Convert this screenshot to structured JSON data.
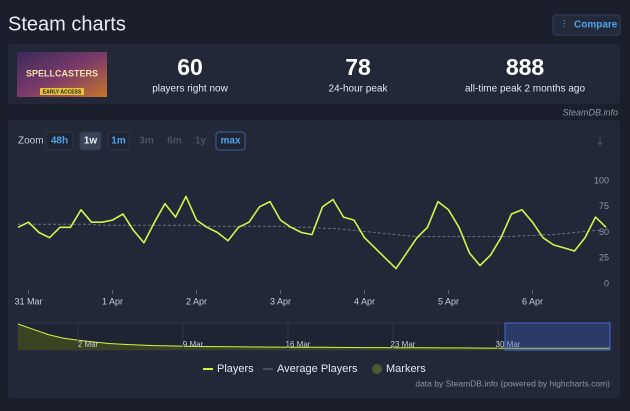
{
  "header": {
    "title": "Steam charts",
    "button": "Compare"
  },
  "game_image": {
    "title": "SPELLCASTERS",
    "badge": "EARLY ACCESS"
  },
  "stats": [
    {
      "value": "60",
      "label": "players right now"
    },
    {
      "value": "78",
      "label": "24-hour peak"
    },
    {
      "value": "888",
      "label": "all-time peak 2 months ago"
    }
  ],
  "source": "SteamDB.info",
  "zoom": {
    "label": "Zoom",
    "buttons": [
      "48h",
      "1w",
      "1m",
      "3m",
      "6m",
      "1y",
      "max"
    ],
    "active": "1w",
    "disabled": [
      "3m",
      "6m",
      "1y"
    ]
  },
  "chart_data": {
    "type": "line",
    "categories": [
      null,
      "31 Mar",
      null,
      null,
      null,
      null,
      null,
      null,
      null,
      "1 Apr",
      null,
      null,
      null,
      null,
      null,
      null,
      null,
      "2 Apr",
      null,
      null,
      null,
      null,
      null,
      null,
      null,
      "3 Apr",
      null,
      null,
      null,
      null,
      null,
      null,
      null,
      "4 Apr",
      null,
      null,
      null,
      null,
      null,
      null,
      null,
      "5 Apr",
      null,
      null,
      null,
      null,
      null,
      null,
      null,
      "6 Apr",
      null,
      null,
      null,
      null,
      null,
      null,
      null
    ],
    "series": [
      {
        "name": "Players",
        "color": "#d2f54a",
        "values": [
          55,
          60,
          50,
          45,
          55,
          55,
          72,
          60,
          60,
          62,
          68,
          52,
          40,
          60,
          78,
          65,
          85,
          62,
          55,
          50,
          42,
          55,
          60,
          75,
          80,
          62,
          55,
          50,
          48,
          75,
          82,
          65,
          62,
          45,
          35,
          25,
          15,
          30,
          45,
          55,
          80,
          72,
          55,
          30,
          18,
          28,
          45,
          68,
          72,
          60,
          45,
          38,
          35,
          32,
          45,
          65,
          55
        ]
      },
      {
        "name": "Average Players",
        "color": "#6b7080",
        "values": [
          58,
          58,
          58,
          58,
          58,
          58,
          58,
          58,
          57,
          57,
          57,
          57,
          57,
          57,
          57,
          57,
          57,
          57,
          56,
          56,
          56,
          56,
          56,
          56,
          56,
          56,
          55,
          55,
          55,
          54,
          54,
          53,
          52,
          51,
          50,
          49,
          48,
          47,
          46,
          46,
          46,
          46,
          46,
          46,
          46,
          46,
          46,
          46,
          47,
          47,
          48,
          48,
          49,
          50,
          51,
          52,
          52
        ]
      }
    ],
    "legend": [
      "Players",
      "Average Players",
      "Markers"
    ],
    "markers_color": "#4b5a2e",
    "ylim": [
      0,
      100
    ],
    "yticks": [
      0,
      25,
      50,
      75,
      100
    ],
    "grid": false,
    "navigator": {
      "labels": [
        "2 Mar",
        "9 Mar",
        "16 Mar",
        "23 Mar",
        "30 Mar"
      ],
      "values": [
        880,
        700,
        520,
        400,
        330,
        270,
        220,
        190,
        170,
        150,
        140,
        130,
        120,
        115,
        110,
        105,
        100,
        98,
        95,
        92,
        90,
        88,
        85,
        82,
        80,
        78,
        76,
        74,
        72,
        70,
        68,
        66,
        64,
        62,
        60,
        60,
        58,
        58,
        56,
        56
      ]
    },
    "credit": "data by SteamDB.info (powered by highcharts.com)"
  }
}
